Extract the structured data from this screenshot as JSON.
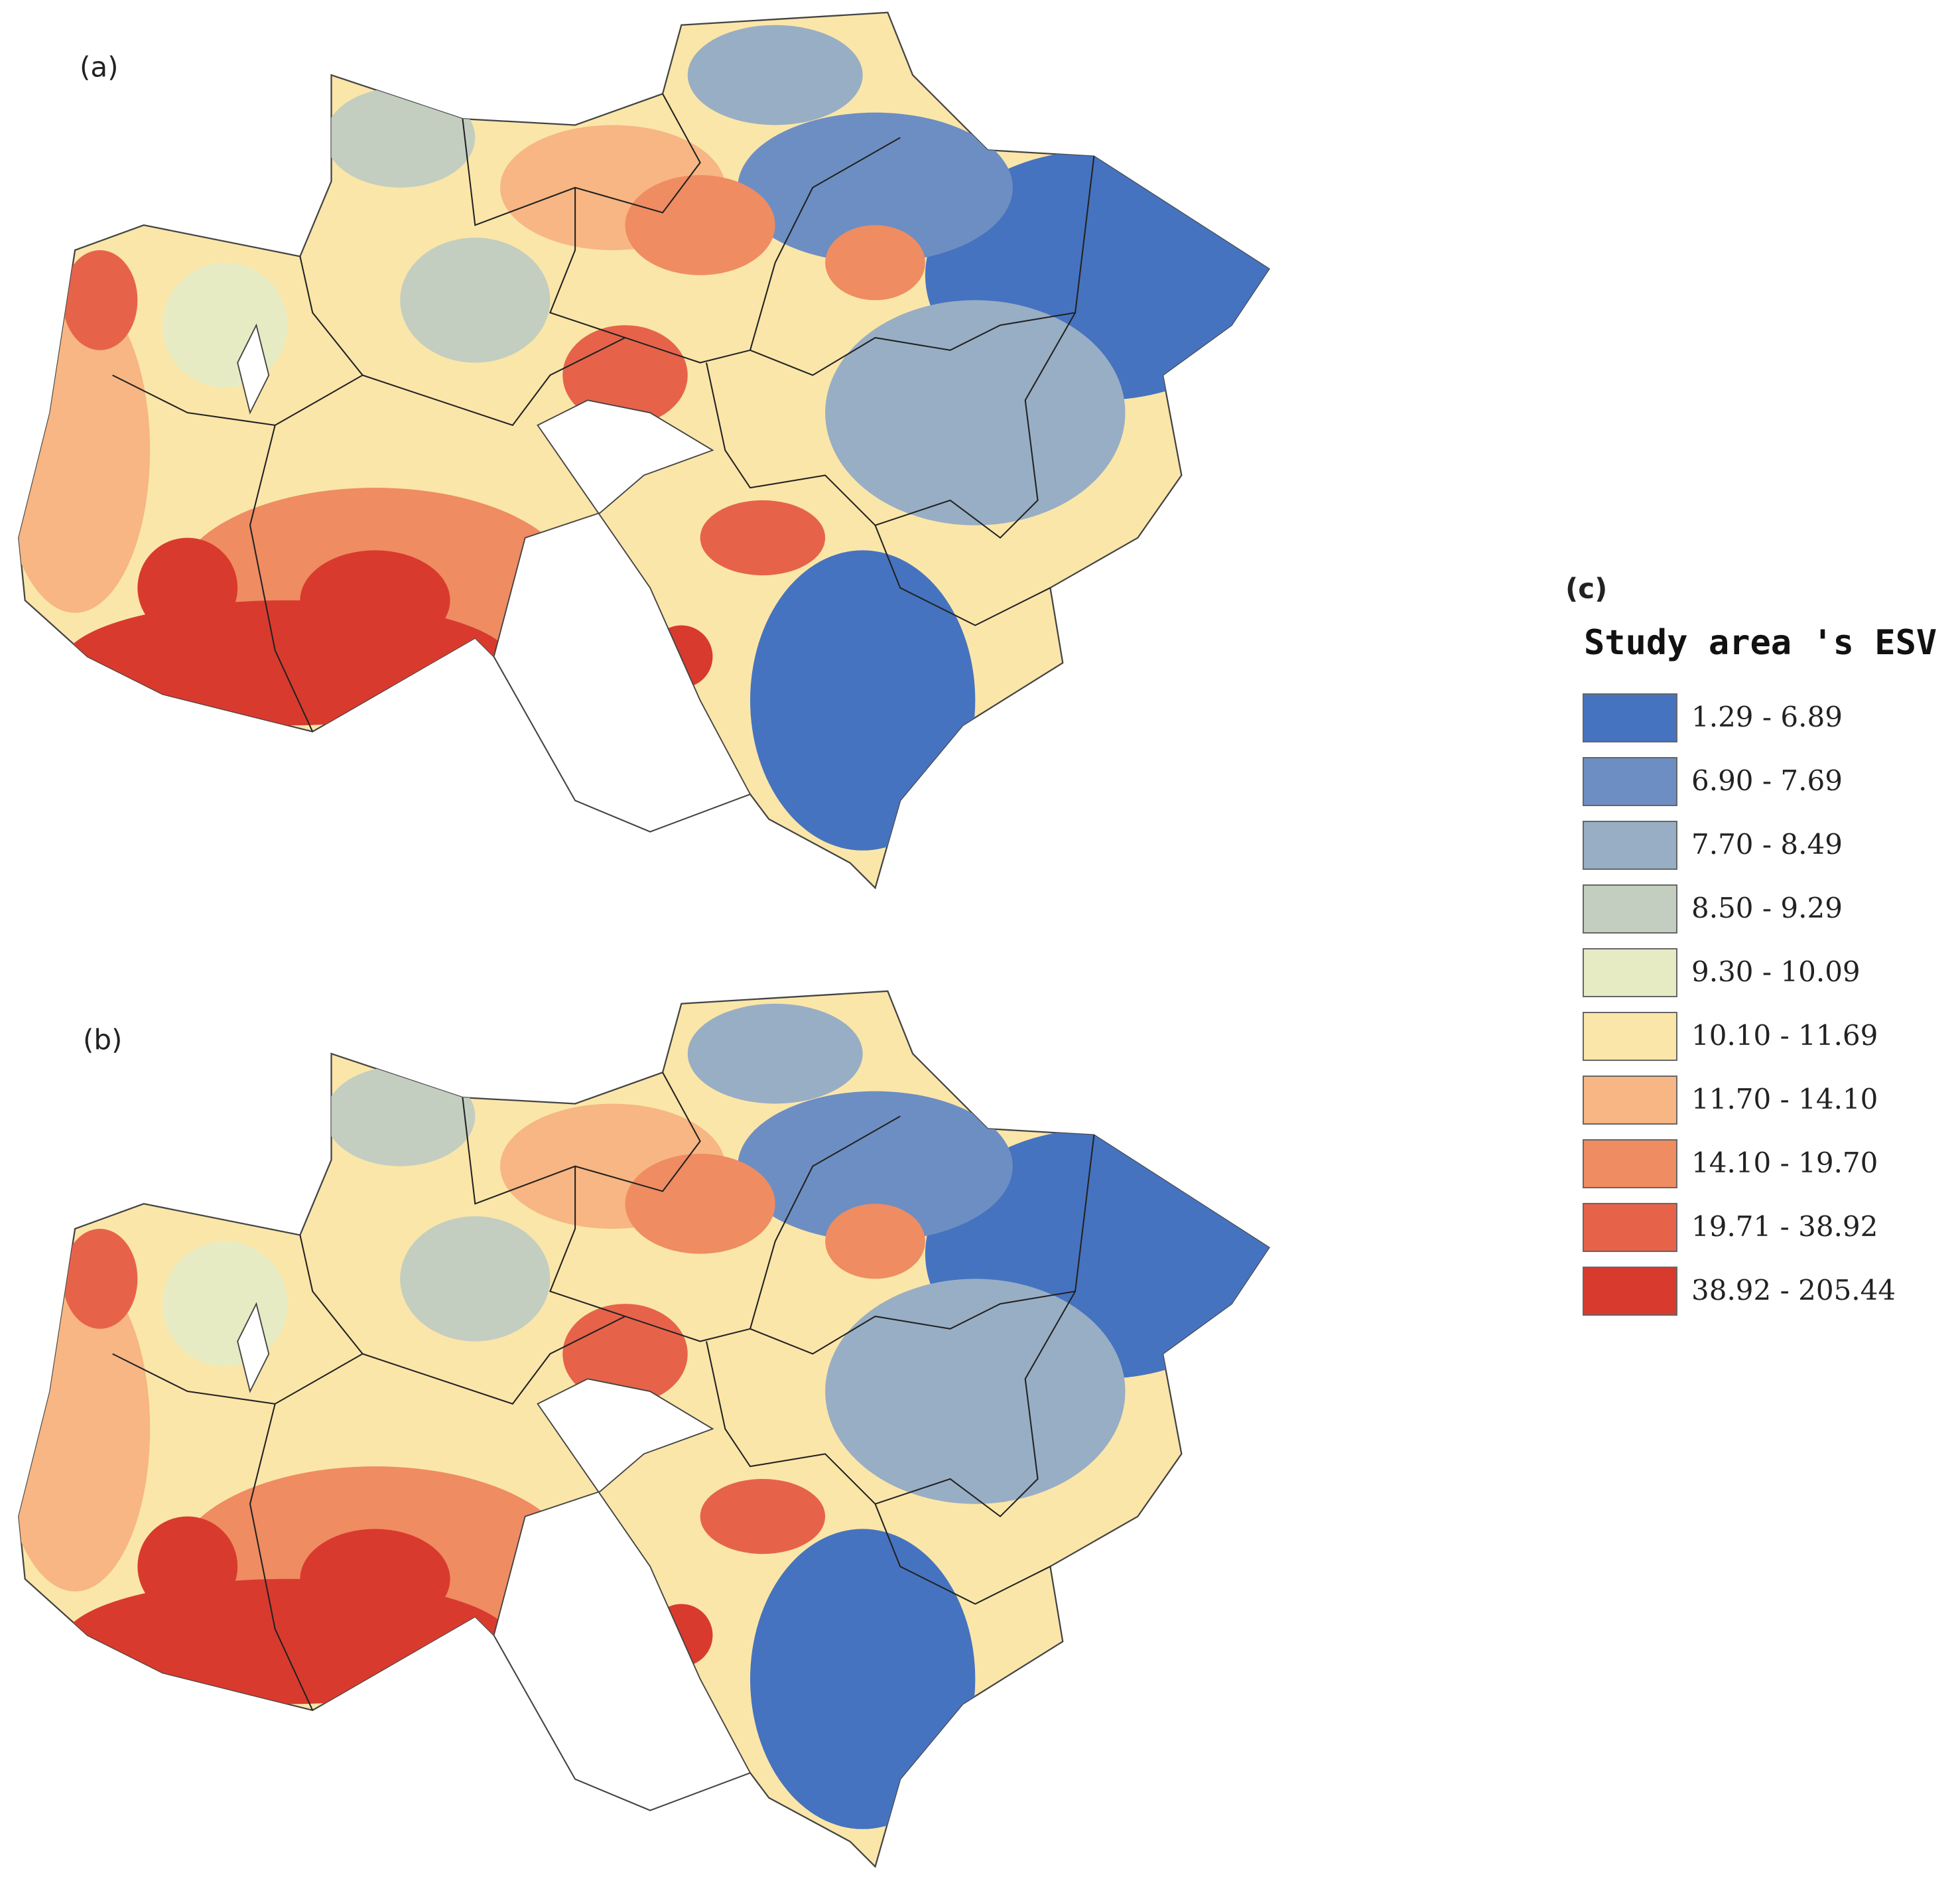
{
  "panels": [
    {
      "label": "(a)"
    },
    {
      "label": "(b)"
    }
  ],
  "legend": {
    "label": "(c)",
    "title": "Study area 's ESV",
    "items": [
      {
        "label": "1.29 - 6.89",
        "color": "#4673bf"
      },
      {
        "label": "6.90 - 7.69",
        "color": "#6d8ec2"
      },
      {
        "label": "7.70 - 8.49",
        "color": "#98aec4"
      },
      {
        "label": "8.50 - 9.29",
        "color": "#c3cec0"
      },
      {
        "label": "9.30 - 10.09",
        "color": "#e6ebc4"
      },
      {
        "label": "10.10 - 11.69",
        "color": "#fbe6a9"
      },
      {
        "label": "11.70 - 14.10",
        "color": "#f7b683"
      },
      {
        "label": "14.10 - 19.70",
        "color": "#ef8c62"
      },
      {
        "label": "19.71 - 38.92",
        "color": "#e6634a"
      },
      {
        "label": "38.92 - 205.44",
        "color": "#d93a2e"
      }
    ]
  }
}
